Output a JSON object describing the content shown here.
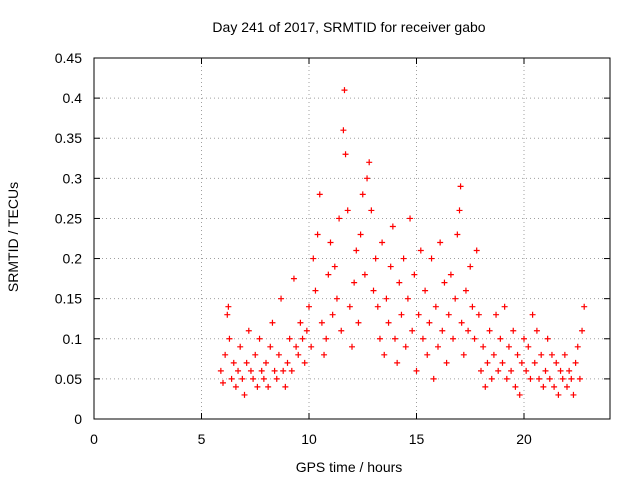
{
  "chart_data": {
    "type": "scatter",
    "title": "Day 241 of 2017, SRMTID for receiver gabo",
    "xlabel": "GPS time / hours",
    "ylabel": "SRMTID / TECUs",
    "xlim": [
      0,
      24
    ],
    "ylim": [
      0,
      0.45
    ],
    "grid": true,
    "x_ticks": [
      0,
      5,
      10,
      15,
      20
    ],
    "x_tick_labels": [
      "0",
      "5",
      "10",
      "15",
      "20"
    ],
    "y_ticks": [
      0,
      0.05,
      0.1,
      0.15,
      0.2,
      0.25,
      0.3,
      0.35,
      0.4,
      0.45
    ],
    "y_tick_labels": [
      "0",
      "0.05",
      "0.1",
      "0.15",
      "0.2",
      "0.25",
      "0.3",
      "0.35",
      "0.4",
      "0.45"
    ],
    "marker": "+",
    "color": "#ff0000",
    "series": [
      {
        "name": "SRMTID",
        "points": [
          [
            5.9,
            0.06
          ],
          [
            6.0,
            0.045
          ],
          [
            6.1,
            0.08
          ],
          [
            6.2,
            0.13
          ],
          [
            6.25,
            0.14
          ],
          [
            6.3,
            0.1
          ],
          [
            6.4,
            0.05
          ],
          [
            6.5,
            0.07
          ],
          [
            6.6,
            0.04
          ],
          [
            6.7,
            0.06
          ],
          [
            6.8,
            0.09
          ],
          [
            6.9,
            0.05
          ],
          [
            7.0,
            0.03
          ],
          [
            7.1,
            0.07
          ],
          [
            7.2,
            0.11
          ],
          [
            7.3,
            0.06
          ],
          [
            7.4,
            0.05
          ],
          [
            7.5,
            0.08
          ],
          [
            7.6,
            0.04
          ],
          [
            7.7,
            0.1
          ],
          [
            7.8,
            0.06
          ],
          [
            7.9,
            0.05
          ],
          [
            8.0,
            0.07
          ],
          [
            8.1,
            0.04
          ],
          [
            8.2,
            0.09
          ],
          [
            8.3,
            0.12
          ],
          [
            8.4,
            0.06
          ],
          [
            8.5,
            0.05
          ],
          [
            8.6,
            0.08
          ],
          [
            8.7,
            0.15
          ],
          [
            8.8,
            0.06
          ],
          [
            8.9,
            0.04
          ],
          [
            9.0,
            0.07
          ],
          [
            9.1,
            0.1
          ],
          [
            9.2,
            0.06
          ],
          [
            9.3,
            0.175
          ],
          [
            9.4,
            0.09
          ],
          [
            9.5,
            0.08
          ],
          [
            9.6,
            0.12
          ],
          [
            9.7,
            0.1
          ],
          [
            9.8,
            0.07
          ],
          [
            9.9,
            0.11
          ],
          [
            10.0,
            0.14
          ],
          [
            10.1,
            0.09
          ],
          [
            10.2,
            0.2
          ],
          [
            10.3,
            0.16
          ],
          [
            10.4,
            0.23
          ],
          [
            10.5,
            0.28
          ],
          [
            10.6,
            0.12
          ],
          [
            10.7,
            0.08
          ],
          [
            10.8,
            0.1
          ],
          [
            10.9,
            0.18
          ],
          [
            11.0,
            0.22
          ],
          [
            11.1,
            0.13
          ],
          [
            11.2,
            0.19
          ],
          [
            11.3,
            0.15
          ],
          [
            11.4,
            0.25
          ],
          [
            11.5,
            0.11
          ],
          [
            11.6,
            0.36
          ],
          [
            11.65,
            0.41
          ],
          [
            11.7,
            0.33
          ],
          [
            11.8,
            0.26
          ],
          [
            11.9,
            0.14
          ],
          [
            12.0,
            0.09
          ],
          [
            12.1,
            0.17
          ],
          [
            12.2,
            0.21
          ],
          [
            12.3,
            0.12
          ],
          [
            12.4,
            0.23
          ],
          [
            12.5,
            0.28
          ],
          [
            12.6,
            0.18
          ],
          [
            12.7,
            0.3
          ],
          [
            12.8,
            0.32
          ],
          [
            12.9,
            0.26
          ],
          [
            13.0,
            0.16
          ],
          [
            13.1,
            0.2
          ],
          [
            13.2,
            0.14
          ],
          [
            13.3,
            0.1
          ],
          [
            13.4,
            0.22
          ],
          [
            13.5,
            0.08
          ],
          [
            13.6,
            0.15
          ],
          [
            13.7,
            0.12
          ],
          [
            13.8,
            0.19
          ],
          [
            13.9,
            0.24
          ],
          [
            14.0,
            0.1
          ],
          [
            14.1,
            0.07
          ],
          [
            14.2,
            0.17
          ],
          [
            14.3,
            0.13
          ],
          [
            14.4,
            0.2
          ],
          [
            14.5,
            0.09
          ],
          [
            14.6,
            0.15
          ],
          [
            14.7,
            0.25
          ],
          [
            14.8,
            0.11
          ],
          [
            14.9,
            0.18
          ],
          [
            15.0,
            0.06
          ],
          [
            15.1,
            0.13
          ],
          [
            15.2,
            0.21
          ],
          [
            15.3,
            0.1
          ],
          [
            15.4,
            0.16
          ],
          [
            15.5,
            0.08
          ],
          [
            15.6,
            0.12
          ],
          [
            15.7,
            0.2
          ],
          [
            15.8,
            0.05
          ],
          [
            15.9,
            0.14
          ],
          [
            16.0,
            0.09
          ],
          [
            16.1,
            0.22
          ],
          [
            16.2,
            0.11
          ],
          [
            16.3,
            0.17
          ],
          [
            16.4,
            0.07
          ],
          [
            16.5,
            0.13
          ],
          [
            16.6,
            0.18
          ],
          [
            16.7,
            0.1
          ],
          [
            16.8,
            0.15
          ],
          [
            16.9,
            0.23
          ],
          [
            17.0,
            0.26
          ],
          [
            17.05,
            0.29
          ],
          [
            17.1,
            0.12
          ],
          [
            17.2,
            0.08
          ],
          [
            17.3,
            0.16
          ],
          [
            17.4,
            0.11
          ],
          [
            17.5,
            0.19
          ],
          [
            17.6,
            0.14
          ],
          [
            17.7,
            0.1
          ],
          [
            17.8,
            0.21
          ],
          [
            17.9,
            0.13
          ],
          [
            18.0,
            0.06
          ],
          [
            18.1,
            0.09
          ],
          [
            18.2,
            0.04
          ],
          [
            18.3,
            0.07
          ],
          [
            18.4,
            0.11
          ],
          [
            18.5,
            0.05
          ],
          [
            18.6,
            0.08
          ],
          [
            18.7,
            0.13
          ],
          [
            18.8,
            0.06
          ],
          [
            18.9,
            0.1
          ],
          [
            19.0,
            0.07
          ],
          [
            19.1,
            0.14
          ],
          [
            19.2,
            0.05
          ],
          [
            19.3,
            0.09
          ],
          [
            19.4,
            0.06
          ],
          [
            19.5,
            0.11
          ],
          [
            19.6,
            0.04
          ],
          [
            19.7,
            0.08
          ],
          [
            19.8,
            0.03
          ],
          [
            19.9,
            0.07
          ],
          [
            20.0,
            0.1
          ],
          [
            20.1,
            0.06
          ],
          [
            20.2,
            0.09
          ],
          [
            20.3,
            0.05
          ],
          [
            20.4,
            0.13
          ],
          [
            20.5,
            0.07
          ],
          [
            20.6,
            0.11
          ],
          [
            20.7,
            0.05
          ],
          [
            20.8,
            0.08
          ],
          [
            20.9,
            0.04
          ],
          [
            21.0,
            0.06
          ],
          [
            21.1,
            0.1
          ],
          [
            21.2,
            0.05
          ],
          [
            21.3,
            0.08
          ],
          [
            21.4,
            0.04
          ],
          [
            21.5,
            0.07
          ],
          [
            21.6,
            0.03
          ],
          [
            21.7,
            0.06
          ],
          [
            21.8,
            0.05
          ],
          [
            21.9,
            0.08
          ],
          [
            22.0,
            0.04
          ],
          [
            22.1,
            0.06
          ],
          [
            22.2,
            0.05
          ],
          [
            22.3,
            0.03
          ],
          [
            22.4,
            0.07
          ],
          [
            22.5,
            0.09
          ],
          [
            22.6,
            0.05
          ],
          [
            22.7,
            0.11
          ],
          [
            22.8,
            0.14
          ]
        ]
      }
    ]
  }
}
